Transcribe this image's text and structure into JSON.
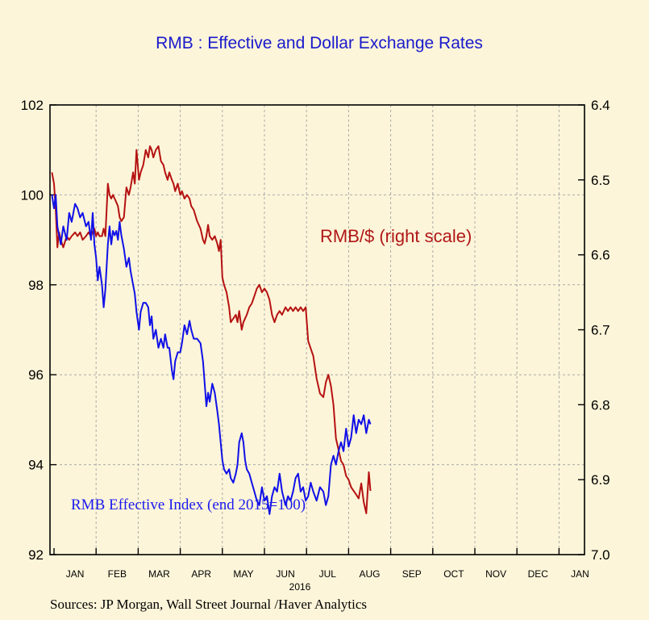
{
  "chart_data": {
    "type": "line",
    "title": "RMB : Effective and Dollar Exchange Rates",
    "source": "Sources:  JP Morgan, Wall Street Journal /Haver Analytics",
    "year_label": "2016",
    "x_ticks": [
      "JAN",
      "FEB",
      "MAR",
      "APR",
      "MAY",
      "JUN",
      "JUL",
      "AUG",
      "SEP",
      "OCT",
      "NOV",
      "DEC",
      "JAN"
    ],
    "y_left": {
      "range": [
        92,
        102
      ],
      "ticks": [
        "92",
        "94",
        "96",
        "98",
        "100",
        "102"
      ]
    },
    "y_right": {
      "range": [
        6.4,
        7.0
      ],
      "inverted": true,
      "ticks": [
        "6.4",
        "6.5",
        "6.6",
        "6.7",
        "6.8",
        "6.9",
        "7.0"
      ]
    },
    "grid": true,
    "annotations": {
      "right_series": "RMB/$ (right scale)",
      "left_series": "RMB Effective Index (end 2015=100)"
    },
    "colors": {
      "left_series": "#1010e8",
      "right_series": "#b51212"
    },
    "series": [
      {
        "axis": "left",
        "x_unit": "month (0 = start of Jan 2016)",
        "points": [
          [
            -0.05,
            100.0
          ],
          [
            0.0,
            99.7
          ],
          [
            0.04,
            100.0
          ],
          [
            0.08,
            99.3
          ],
          [
            0.12,
            99.1
          ],
          [
            0.16,
            98.9
          ],
          [
            0.22,
            99.3
          ],
          [
            0.3,
            99.0
          ],
          [
            0.36,
            99.6
          ],
          [
            0.42,
            99.4
          ],
          [
            0.5,
            99.8
          ],
          [
            0.56,
            99.7
          ],
          [
            0.62,
            99.5
          ],
          [
            0.68,
            99.6
          ],
          [
            0.76,
            99.3
          ],
          [
            0.82,
            99.4
          ],
          [
            0.88,
            99.0
          ],
          [
            0.92,
            99.6
          ],
          [
            0.96,
            98.9
          ],
          [
            1.0,
            98.6
          ],
          [
            1.04,
            98.1
          ],
          [
            1.08,
            98.4
          ],
          [
            1.14,
            98.0
          ],
          [
            1.18,
            97.5
          ],
          [
            1.22,
            97.9
          ],
          [
            1.28,
            98.9
          ],
          [
            1.32,
            99.3
          ],
          [
            1.36,
            98.9
          ],
          [
            1.4,
            99.2
          ],
          [
            1.44,
            99.1
          ],
          [
            1.48,
            99.2
          ],
          [
            1.52,
            99.0
          ],
          [
            1.56,
            99.4
          ],
          [
            1.6,
            99.1
          ],
          [
            1.66,
            98.8
          ],
          [
            1.72,
            98.4
          ],
          [
            1.78,
            98.6
          ],
          [
            1.82,
            98.3
          ],
          [
            1.88,
            98.0
          ],
          [
            1.92,
            97.8
          ],
          [
            1.96,
            97.4
          ],
          [
            2.02,
            97.0
          ],
          [
            2.06,
            97.4
          ],
          [
            2.12,
            97.6
          ],
          [
            2.18,
            97.6
          ],
          [
            2.24,
            97.5
          ],
          [
            2.28,
            97.1
          ],
          [
            2.32,
            97.3
          ],
          [
            2.36,
            96.8
          ],
          [
            2.42,
            97.0
          ],
          [
            2.48,
            96.6
          ],
          [
            2.54,
            96.8
          ],
          [
            2.6,
            96.6
          ],
          [
            2.64,
            96.9
          ],
          [
            2.7,
            96.6
          ],
          [
            2.74,
            96.6
          ],
          [
            2.8,
            96.1
          ],
          [
            2.84,
            95.9
          ],
          [
            2.88,
            96.3
          ],
          [
            2.94,
            96.5
          ],
          [
            3.0,
            96.5
          ],
          [
            3.04,
            96.7
          ],
          [
            3.1,
            97.1
          ],
          [
            3.16,
            96.9
          ],
          [
            3.22,
            97.2
          ],
          [
            3.26,
            97.0
          ],
          [
            3.32,
            96.8
          ],
          [
            3.4,
            96.8
          ],
          [
            3.48,
            96.7
          ],
          [
            3.54,
            96.3
          ],
          [
            3.58,
            95.8
          ],
          [
            3.62,
            95.3
          ],
          [
            3.66,
            95.6
          ],
          [
            3.7,
            95.4
          ],
          [
            3.76,
            95.8
          ],
          [
            3.82,
            95.6
          ],
          [
            3.88,
            95.2
          ],
          [
            3.92,
            94.9
          ],
          [
            3.96,
            94.5
          ],
          [
            4.0,
            94.1
          ],
          [
            4.04,
            93.9
          ],
          [
            4.1,
            93.8
          ],
          [
            4.16,
            93.9
          ],
          [
            4.2,
            93.7
          ],
          [
            4.26,
            93.6
          ],
          [
            4.32,
            93.8
          ],
          [
            4.36,
            94.0
          ],
          [
            4.4,
            94.5
          ],
          [
            4.46,
            94.7
          ],
          [
            4.5,
            94.5
          ],
          [
            4.54,
            94.1
          ],
          [
            4.58,
            93.9
          ],
          [
            4.64,
            93.8
          ],
          [
            4.7,
            93.6
          ],
          [
            4.76,
            93.4
          ],
          [
            4.82,
            93.2
          ],
          [
            4.88,
            93.1
          ],
          [
            4.94,
            93.5
          ],
          [
            5.0,
            93.2
          ],
          [
            5.06,
            93.3
          ],
          [
            5.12,
            92.9
          ],
          [
            5.18,
            93.3
          ],
          [
            5.24,
            93.5
          ],
          [
            5.3,
            93.4
          ],
          [
            5.36,
            93.8
          ],
          [
            5.42,
            93.4
          ],
          [
            5.5,
            93.1
          ],
          [
            5.56,
            93.3
          ],
          [
            5.62,
            93.2
          ],
          [
            5.68,
            93.4
          ],
          [
            5.74,
            93.7
          ],
          [
            5.8,
            93.8
          ],
          [
            5.86,
            93.4
          ],
          [
            5.92,
            93.5
          ],
          [
            5.98,
            93.2
          ],
          [
            6.04,
            93.3
          ],
          [
            6.1,
            93.6
          ],
          [
            6.16,
            93.4
          ],
          [
            6.24,
            93.2
          ],
          [
            6.32,
            93.5
          ],
          [
            6.4,
            93.4
          ],
          [
            6.46,
            93.1
          ],
          [
            6.52,
            93.3
          ],
          [
            6.58,
            94.0
          ],
          [
            6.64,
            94.2
          ],
          [
            6.7,
            94.0
          ],
          [
            6.76,
            94.3
          ],
          [
            6.82,
            94.5
          ],
          [
            6.88,
            94.3
          ],
          [
            6.94,
            94.8
          ],
          [
            7.0,
            94.4
          ],
          [
            7.06,
            94.6
          ],
          [
            7.12,
            95.1
          ],
          [
            7.18,
            94.7
          ],
          [
            7.24,
            95.0
          ],
          [
            7.3,
            94.9
          ],
          [
            7.36,
            95.1
          ],
          [
            7.42,
            94.7
          ],
          [
            7.48,
            95.0
          ],
          [
            7.52,
            94.9
          ]
        ]
      },
      {
        "axis": "right",
        "x_unit": "month (0 = start of Jan 2016)",
        "points": [
          [
            -0.05,
            6.49
          ],
          [
            0.0,
            6.505
          ],
          [
            0.04,
            6.54
          ],
          [
            0.08,
            6.59
          ],
          [
            0.12,
            6.57
          ],
          [
            0.16,
            6.58
          ],
          [
            0.22,
            6.59
          ],
          [
            0.3,
            6.575
          ],
          [
            0.36,
            6.58
          ],
          [
            0.42,
            6.575
          ],
          [
            0.5,
            6.57
          ],
          [
            0.56,
            6.575
          ],
          [
            0.62,
            6.57
          ],
          [
            0.68,
            6.58
          ],
          [
            0.76,
            6.575
          ],
          [
            0.82,
            6.57
          ],
          [
            0.88,
            6.575
          ],
          [
            0.92,
            6.57
          ],
          [
            0.96,
            6.565
          ],
          [
            1.0,
            6.575
          ],
          [
            1.04,
            6.57
          ],
          [
            1.08,
            6.575
          ],
          [
            1.14,
            6.575
          ],
          [
            1.18,
            6.565
          ],
          [
            1.22,
            6.575
          ],
          [
            1.28,
            6.505
          ],
          [
            1.32,
            6.52
          ],
          [
            1.36,
            6.525
          ],
          [
            1.4,
            6.52
          ],
          [
            1.44,
            6.525
          ],
          [
            1.48,
            6.53
          ],
          [
            1.52,
            6.535
          ],
          [
            1.56,
            6.55
          ],
          [
            1.6,
            6.555
          ],
          [
            1.66,
            6.55
          ],
          [
            1.72,
            6.51
          ],
          [
            1.78,
            6.52
          ],
          [
            1.82,
            6.51
          ],
          [
            1.88,
            6.49
          ],
          [
            1.92,
            6.505
          ],
          [
            1.96,
            6.46
          ],
          [
            2.02,
            6.5
          ],
          [
            2.06,
            6.49
          ],
          [
            2.12,
            6.48
          ],
          [
            2.18,
            6.46
          ],
          [
            2.24,
            6.47
          ],
          [
            2.28,
            6.455
          ],
          [
            2.32,
            6.46
          ],
          [
            2.36,
            6.47
          ],
          [
            2.42,
            6.46
          ],
          [
            2.48,
            6.455
          ],
          [
            2.54,
            6.475
          ],
          [
            2.6,
            6.48
          ],
          [
            2.64,
            6.49
          ],
          [
            2.7,
            6.5
          ],
          [
            2.74,
            6.49
          ],
          [
            2.8,
            6.5
          ],
          [
            2.84,
            6.505
          ],
          [
            2.88,
            6.515
          ],
          [
            2.94,
            6.505
          ],
          [
            3.0,
            6.52
          ],
          [
            3.04,
            6.515
          ],
          [
            3.1,
            6.525
          ],
          [
            3.16,
            6.52
          ],
          [
            3.22,
            6.525
          ],
          [
            3.26,
            6.535
          ],
          [
            3.32,
            6.54
          ],
          [
            3.4,
            6.555
          ],
          [
            3.48,
            6.565
          ],
          [
            3.54,
            6.58
          ],
          [
            3.58,
            6.585
          ],
          [
            3.62,
            6.575
          ],
          [
            3.66,
            6.56
          ],
          [
            3.7,
            6.575
          ],
          [
            3.76,
            6.58
          ],
          [
            3.82,
            6.575
          ],
          [
            3.88,
            6.585
          ],
          [
            3.92,
            6.595
          ],
          [
            3.96,
            6.58
          ],
          [
            4.0,
            6.63
          ],
          [
            4.04,
            6.64
          ],
          [
            4.1,
            6.65
          ],
          [
            4.16,
            6.67
          ],
          [
            4.2,
            6.69
          ],
          [
            4.26,
            6.685
          ],
          [
            4.32,
            6.68
          ],
          [
            4.36,
            6.69
          ],
          [
            4.4,
            6.675
          ],
          [
            4.46,
            6.7
          ],
          [
            4.5,
            6.69
          ],
          [
            4.54,
            6.685
          ],
          [
            4.58,
            6.68
          ],
          [
            4.64,
            6.67
          ],
          [
            4.7,
            6.665
          ],
          [
            4.76,
            6.655
          ],
          [
            4.82,
            6.645
          ],
          [
            4.88,
            6.64
          ],
          [
            4.94,
            6.65
          ],
          [
            5.0,
            6.645
          ],
          [
            5.06,
            6.65
          ],
          [
            5.12,
            6.66
          ],
          [
            5.18,
            6.68
          ],
          [
            5.24,
            6.69
          ],
          [
            5.3,
            6.68
          ],
          [
            5.36,
            6.675
          ],
          [
            5.42,
            6.68
          ],
          [
            5.5,
            6.67
          ],
          [
            5.56,
            6.675
          ],
          [
            5.62,
            6.67
          ],
          [
            5.68,
            6.675
          ],
          [
            5.74,
            6.67
          ],
          [
            5.8,
            6.675
          ],
          [
            5.86,
            6.67
          ],
          [
            5.92,
            6.675
          ],
          [
            5.98,
            6.67
          ],
          [
            6.04,
            6.715
          ],
          [
            6.1,
            6.725
          ],
          [
            6.16,
            6.735
          ],
          [
            6.24,
            6.765
          ],
          [
            6.32,
            6.785
          ],
          [
            6.4,
            6.79
          ],
          [
            6.46,
            6.77
          ],
          [
            6.52,
            6.76
          ],
          [
            6.58,
            6.775
          ],
          [
            6.64,
            6.8
          ],
          [
            6.7,
            6.845
          ],
          [
            6.76,
            6.86
          ],
          [
            6.82,
            6.875
          ],
          [
            6.88,
            6.88
          ],
          [
            6.94,
            6.895
          ],
          [
            7.0,
            6.9
          ],
          [
            7.06,
            6.91
          ],
          [
            7.12,
            6.915
          ],
          [
            7.18,
            6.92
          ],
          [
            7.24,
            6.925
          ],
          [
            7.3,
            6.905
          ],
          [
            7.36,
            6.93
          ],
          [
            7.42,
            6.945
          ],
          [
            7.48,
            6.89
          ],
          [
            7.52,
            6.915
          ]
        ]
      }
    ]
  }
}
